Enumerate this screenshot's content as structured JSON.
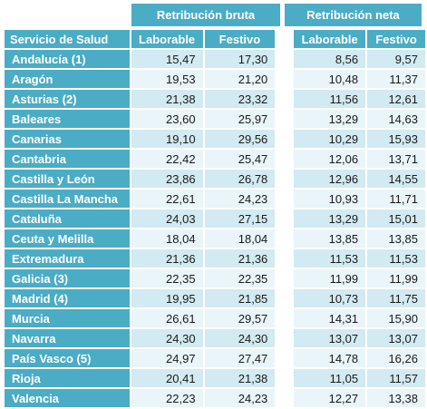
{
  "groups": {
    "bruta": "Retribución bruta",
    "neta": "Retribución neta"
  },
  "columns": {
    "service": "Servicio de Salud",
    "bruta_laborable": "Laborable",
    "bruta_festivo": "Festivo",
    "neta_laborable": "Laborable",
    "neta_festivo": "Festivo"
  },
  "rows": [
    {
      "name": "Andalucía (1)",
      "bl": "15,47",
      "bf": "17,30",
      "nl": "8,56",
      "nf": "9,57"
    },
    {
      "name": "Aragón",
      "bl": "19,53",
      "bf": "21,20",
      "nl": "10,48",
      "nf": "11,37"
    },
    {
      "name": "Asturias (2)",
      "bl": "21,38",
      "bf": "23,32",
      "nl": "11,56",
      "nf": "12,61"
    },
    {
      "name": "Baleares",
      "bl": "23,60",
      "bf": "25,97",
      "nl": "13,29",
      "nf": "14,63"
    },
    {
      "name": "Canarias",
      "bl": "19,10",
      "bf": "29,56",
      "nl": "10,29",
      "nf": "15,93"
    },
    {
      "name": "Cantabria",
      "bl": "22,42",
      "bf": "25,47",
      "nl": "12,06",
      "nf": "13,71"
    },
    {
      "name": "Castilla y León",
      "bl": "23,86",
      "bf": "26,78",
      "nl": "12,96",
      "nf": "14,55"
    },
    {
      "name": "Castilla La Mancha",
      "bl": "22,61",
      "bf": "24,23",
      "nl": "10,93",
      "nf": "11,71"
    },
    {
      "name": "Cataluña",
      "bl": "24,03",
      "bf": "27,15",
      "nl": "13,29",
      "nf": "15,01"
    },
    {
      "name": "Ceuta y Melilla",
      "bl": "18,04",
      "bf": "18,04",
      "nl": "13,85",
      "nf": "13,85"
    },
    {
      "name": "Extremadura",
      "bl": "21,36",
      "bf": "21,36",
      "nl": "11,53",
      "nf": "11,53"
    },
    {
      "name": "Galicia (3)",
      "bl": "22,35",
      "bf": "22,35",
      "nl": "11,99",
      "nf": "11,99"
    },
    {
      "name": "Madrid (4)",
      "bl": "19,95",
      "bf": "21,85",
      "nl": "10,73",
      "nf": "11,75"
    },
    {
      "name": "Murcia",
      "bl": "26,61",
      "bf": "29,57",
      "nl": "14,31",
      "nf": "15,90"
    },
    {
      "name": "Navarra",
      "bl": "24,30",
      "bf": "24,30",
      "nl": "13,07",
      "nf": "13,07"
    },
    {
      "name": "País Vasco (5)",
      "bl": "24,97",
      "bf": "27,47",
      "nl": "14,78",
      "nf": "16,26"
    },
    {
      "name": "Rioja",
      "bl": "20,41",
      "bf": "21,38",
      "nl": "11,05",
      "nf": "11,57"
    },
    {
      "name": "Valencia",
      "bl": "22,23",
      "bf": "24,23",
      "nl": "12,27",
      "nf": "13,38"
    }
  ],
  "colors": {
    "header": "#4bacc6",
    "row_odd": "#d2eaf1",
    "row_even": "#e9f5f9"
  }
}
